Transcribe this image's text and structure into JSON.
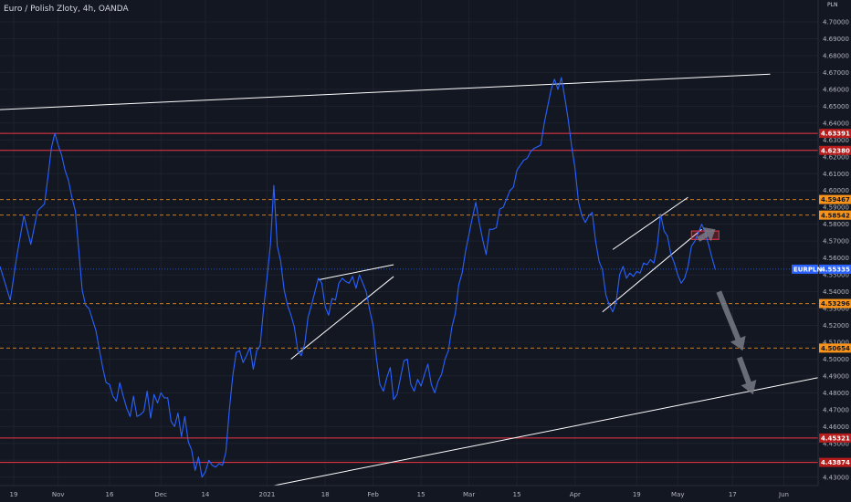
{
  "header": {
    "title": "Euro / Polish Zloty, 4h, OANDA",
    "currency": "PLN"
  },
  "colors": {
    "background": "#131722",
    "price_line": "#2962ff",
    "support_resistance": "#f23645",
    "trendline": "#ffffff",
    "dashed_level": "#f7931a",
    "arrow": "#787b86",
    "axis_text": "#b2b5be"
  },
  "chart_data": {
    "type": "line",
    "symbol": "EURPLN",
    "interval": "4h",
    "ylim": [
      4.425,
      4.713
    ],
    "y_ticks": [
      "4.70000",
      "4.69000",
      "4.68000",
      "4.67000",
      "4.66000",
      "4.65000",
      "4.64000",
      "4.63000",
      "4.62000",
      "4.61000",
      "4.60000",
      "4.59000",
      "4.58000",
      "4.57000",
      "4.56000",
      "4.55000",
      "4.54000",
      "4.53000",
      "4.52000",
      "4.51000",
      "4.50000",
      "4.49000",
      "4.48000",
      "4.47000",
      "4.46000",
      "4.45000",
      "4.44000",
      "4.43000"
    ],
    "x_ticks": [
      {
        "label": "19",
        "day": 0
      },
      {
        "label": "Nov",
        "day": 13
      },
      {
        "label": "16",
        "day": 28
      },
      {
        "label": "Dec",
        "day": 43
      },
      {
        "label": "14",
        "day": 56
      },
      {
        "label": "2021",
        "day": 74
      },
      {
        "label": "18",
        "day": 91
      },
      {
        "label": "Feb",
        "day": 105
      },
      {
        "label": "15",
        "day": 119
      },
      {
        "label": "Mar",
        "day": 133
      },
      {
        "label": "15",
        "day": 147
      },
      {
        "label": "Apr",
        "day": 164
      },
      {
        "label": "19",
        "day": 182
      },
      {
        "label": "May",
        "day": 194
      },
      {
        "label": "17",
        "day": 210
      },
      {
        "label": "Jun",
        "day": 225
      }
    ],
    "xlim": [
      -4,
      235
    ],
    "series": [
      {
        "points": [
          [
            -4,
            4.555
          ],
          [
            -1,
            4.535
          ],
          [
            1,
            4.562
          ],
          [
            3,
            4.585
          ],
          [
            5,
            4.568
          ],
          [
            7,
            4.588
          ],
          [
            9,
            4.592
          ],
          [
            10,
            4.608
          ],
          [
            11,
            4.625
          ],
          [
            12,
            4.634
          ],
          [
            13,
            4.627
          ],
          [
            14,
            4.621
          ],
          [
            15,
            4.612
          ],
          [
            16,
            4.606
          ],
          [
            17,
            4.596
          ],
          [
            18,
            4.588
          ],
          [
            19,
            4.565
          ],
          [
            20,
            4.541
          ],
          [
            21,
            4.532
          ],
          [
            22,
            4.53
          ],
          [
            24,
            4.517
          ],
          [
            25,
            4.506
          ],
          [
            26,
            4.495
          ],
          [
            27,
            4.486
          ],
          [
            28,
            4.485
          ],
          [
            29,
            4.478
          ],
          [
            30,
            4.475
          ],
          [
            31,
            4.486
          ],
          [
            32,
            4.478
          ],
          [
            33,
            4.471
          ],
          [
            34,
            4.466
          ],
          [
            35,
            4.478
          ],
          [
            36,
            4.466
          ],
          [
            37,
            4.467
          ],
          [
            38,
            4.469
          ],
          [
            39,
            4.481
          ],
          [
            40,
            4.465
          ],
          [
            41,
            4.479
          ],
          [
            42,
            4.474
          ],
          [
            43,
            4.48
          ],
          [
            44,
            4.477
          ],
          [
            45,
            4.477
          ],
          [
            46,
            4.463
          ],
          [
            47,
            4.46
          ],
          [
            48,
            4.468
          ],
          [
            49,
            4.454
          ],
          [
            50,
            4.466
          ],
          [
            51,
            4.451
          ],
          [
            52,
            4.446
          ],
          [
            53,
            4.434
          ],
          [
            54,
            4.442
          ],
          [
            55,
            4.43
          ],
          [
            56,
            4.433
          ],
          [
            57,
            4.44
          ],
          [
            58,
            4.437
          ],
          [
            59,
            4.436
          ],
          [
            60,
            4.438
          ],
          [
            61,
            4.437
          ],
          [
            62,
            4.445
          ],
          [
            63,
            4.47
          ],
          [
            64,
            4.49
          ],
          [
            65,
            4.504
          ],
          [
            66,
            4.505
          ],
          [
            67,
            4.498
          ],
          [
            68,
            4.502
          ],
          [
            69,
            4.507
          ],
          [
            70,
            4.494
          ],
          [
            71,
            4.505
          ],
          [
            72,
            4.508
          ],
          [
            73,
            4.53
          ],
          [
            74,
            4.548
          ],
          [
            75,
            4.568
          ],
          [
            76,
            4.603
          ],
          [
            77,
            4.567
          ],
          [
            78,
            4.558
          ],
          [
            79,
            4.541
          ],
          [
            80,
            4.532
          ],
          [
            81,
            4.526
          ],
          [
            82,
            4.519
          ],
          [
            83,
            4.505
          ],
          [
            84,
            4.502
          ],
          [
            85,
            4.509
          ],
          [
            86,
            4.525
          ],
          [
            87,
            4.532
          ],
          [
            88,
            4.54
          ],
          [
            89,
            4.548
          ],
          [
            90,
            4.545
          ],
          [
            91,
            4.531
          ],
          [
            92,
            4.526
          ],
          [
            93,
            4.536
          ],
          [
            94,
            4.535
          ],
          [
            95,
            4.545
          ],
          [
            96,
            4.548
          ],
          [
            97,
            4.546
          ],
          [
            98,
            4.545
          ],
          [
            99,
            4.549
          ],
          [
            100,
            4.542
          ],
          [
            101,
            4.55
          ],
          [
            102,
            4.545
          ],
          [
            103,
            4.54
          ],
          [
            104,
            4.529
          ],
          [
            105,
            4.52
          ],
          [
            106,
            4.5
          ],
          [
            107,
            4.485
          ],
          [
            108,
            4.481
          ],
          [
            109,
            4.489
          ],
          [
            110,
            4.495
          ],
          [
            111,
            4.476
          ],
          [
            112,
            4.479
          ],
          [
            113,
            4.489
          ],
          [
            114,
            4.499
          ],
          [
            115,
            4.5
          ],
          [
            116,
            4.485
          ],
          [
            117,
            4.481
          ],
          [
            118,
            4.488
          ],
          [
            119,
            4.484
          ],
          [
            120,
            4.491
          ],
          [
            121,
            4.497
          ],
          [
            122,
            4.485
          ],
          [
            123,
            4.48
          ],
          [
            124,
            4.487
          ],
          [
            125,
            4.491
          ],
          [
            126,
            4.5
          ],
          [
            127,
            4.505
          ],
          [
            128,
            4.519
          ],
          [
            129,
            4.527
          ],
          [
            130,
            4.544
          ],
          [
            131,
            4.551
          ],
          [
            132,
            4.564
          ],
          [
            133,
            4.574
          ],
          [
            134,
            4.584
          ],
          [
            135,
            4.593
          ],
          [
            136,
            4.581
          ],
          [
            137,
            4.571
          ],
          [
            138,
            4.562
          ],
          [
            139,
            4.577
          ],
          [
            140,
            4.577
          ],
          [
            141,
            4.578
          ],
          [
            142,
            4.589
          ],
          [
            143,
            4.59
          ],
          [
            144,
            4.595
          ],
          [
            145,
            4.6
          ],
          [
            146,
            4.602
          ],
          [
            147,
            4.612
          ],
          [
            148,
            4.615
          ],
          [
            149,
            4.618
          ],
          [
            150,
            4.619
          ],
          [
            151,
            4.623
          ],
          [
            152,
            4.625
          ],
          [
            153,
            4.626
          ],
          [
            154,
            4.627
          ],
          [
            155,
            4.64
          ],
          [
            156,
            4.65
          ],
          [
            157,
            4.66
          ],
          [
            158,
            4.666
          ],
          [
            159,
            4.66
          ],
          [
            160,
            4.667
          ],
          [
            161,
            4.655
          ],
          [
            162,
            4.642
          ],
          [
            163,
            4.626
          ],
          [
            164,
            4.613
          ],
          [
            165,
            4.593
          ],
          [
            166,
            4.585
          ],
          [
            167,
            4.581
          ],
          [
            168,
            4.585
          ],
          [
            169,
            4.587
          ],
          [
            170,
            4.57
          ],
          [
            171,
            4.558
          ],
          [
            172,
            4.553
          ],
          [
            173,
            4.538
          ],
          [
            174,
            4.532
          ],
          [
            175,
            4.528
          ],
          [
            176,
            4.534
          ],
          [
            177,
            4.55
          ],
          [
            178,
            4.555
          ],
          [
            179,
            4.548
          ],
          [
            180,
            4.551
          ],
          [
            181,
            4.549
          ],
          [
            182,
            4.552
          ],
          [
            183,
            4.551
          ],
          [
            184,
            4.557
          ],
          [
            185,
            4.556
          ],
          [
            186,
            4.559
          ],
          [
            187,
            4.557
          ],
          [
            188,
            4.567
          ],
          [
            189,
            4.586
          ],
          [
            190,
            4.576
          ],
          [
            191,
            4.573
          ],
          [
            192,
            4.562
          ],
          [
            193,
            4.557
          ],
          [
            194,
            4.55
          ],
          [
            195,
            4.545
          ],
          [
            196,
            4.548
          ],
          [
            197,
            4.555
          ],
          [
            198,
            4.567
          ],
          [
            199,
            4.57
          ],
          [
            200,
            4.575
          ],
          [
            201,
            4.58
          ],
          [
            202,
            4.575
          ],
          [
            203,
            4.568
          ],
          [
            204,
            4.56
          ],
          [
            205,
            4.553
          ]
        ]
      }
    ],
    "horizontal_levels": [
      {
        "value": 4.63391,
        "label": "4.63391",
        "style": "solid"
      },
      {
        "value": 4.6238,
        "label": "4.62380",
        "style": "solid"
      },
      {
        "value": 4.59467,
        "label": "4.59467",
        "style": "dashed"
      },
      {
        "value": 4.58542,
        "label": "4.58542",
        "style": "dashed"
      },
      {
        "value": 4.55335,
        "label": "4.55335",
        "style": "dotted-current",
        "name": "EURPLN"
      },
      {
        "value": 4.53296,
        "label": "4.53296",
        "style": "dashed"
      },
      {
        "value": 4.50654,
        "label": "4.50654",
        "style": "dashed"
      },
      {
        "value": 4.45321,
        "label": "4.45321",
        "style": "solid"
      },
      {
        "value": 4.43874,
        "label": "4.43874",
        "style": "solid"
      }
    ],
    "trendlines": [
      {
        "from": [
          -4,
          4.648
        ],
        "to": [
          221,
          4.669
        ]
      },
      {
        "from": [
          76,
          4.425
        ],
        "to": [
          235,
          4.489
        ]
      },
      {
        "from": [
          81,
          4.5
        ],
        "to": [
          111,
          4.549
        ]
      },
      {
        "from": [
          89,
          4.547
        ],
        "to": [
          111,
          4.556
        ]
      },
      {
        "from": [
          172,
          4.528
        ],
        "to": [
          201,
          4.577
        ]
      },
      {
        "from": [
          175,
          4.565
        ],
        "to": [
          197,
          4.596
        ]
      }
    ],
    "arrows": [
      {
        "from": [
          200,
          4.571
        ],
        "to": [
          205,
          4.577
        ]
      },
      {
        "from": [
          206,
          4.54
        ],
        "to": [
          213,
          4.505
        ]
      },
      {
        "from": [
          212,
          4.501
        ],
        "to": [
          216,
          4.479
        ]
      }
    ],
    "marker_box": {
      "from": [
        198,
        4.576
      ],
      "to": [
        206,
        4.571
      ]
    }
  }
}
